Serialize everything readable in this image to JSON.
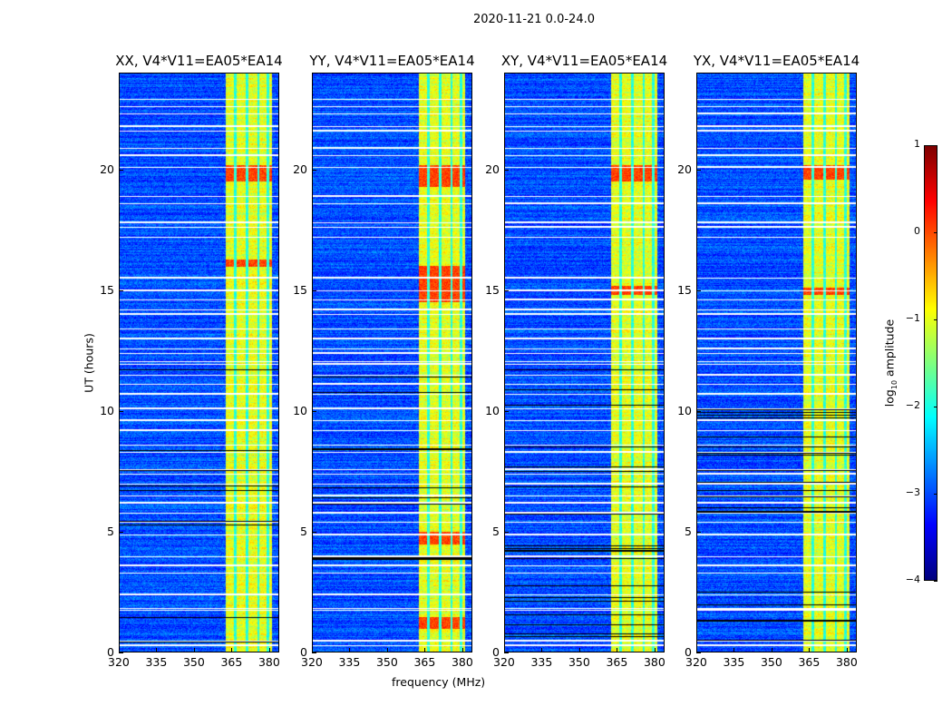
{
  "figure": {
    "suptitle": "2020-11-21 0.0-24.0"
  },
  "chart_data": {
    "type": "heatmap",
    "xlabel": "frequency (MHz)",
    "ylabel": "UT (hours)",
    "xlim": [
      320,
      384
    ],
    "ylim": [
      0,
      24
    ],
    "xticks": [
      320,
      335,
      350,
      365,
      380
    ],
    "yticks": [
      0,
      5,
      10,
      15,
      20
    ],
    "panels": [
      {
        "title": "XX, V4*V11=EA05*EA14",
        "hot_hours": [
          [
            19.5,
            20.2
          ],
          [
            16,
            16.3
          ]
        ]
      },
      {
        "title": "YY, V4*V11=EA05*EA14",
        "hot_hours": [
          [
            19.3,
            20.2
          ],
          [
            14.5,
            16
          ],
          [
            4.5,
            5
          ],
          [
            1,
            1.5
          ]
        ]
      },
      {
        "title": "XY, V4*V11=EA05*EA14",
        "hot_hours": [
          [
            19.5,
            20.2
          ],
          [
            14.8,
            15.2
          ]
        ]
      },
      {
        "title": "YX, V4*V11=EA05*EA14",
        "hot_hours": [
          [
            19.6,
            20.2
          ],
          [
            14.8,
            15.1
          ]
        ]
      }
    ],
    "rfi_band_mhz": [
      362.5,
      381
    ],
    "background_log_amplitude": -3,
    "rfi_log_amplitude": -1,
    "flagged_hours": [
      0.3,
      0.5,
      1.75,
      1.85,
      2.4,
      3.3,
      3.6,
      4.0,
      4.9,
      5.4,
      5.8,
      6.2,
      6.5,
      7.0,
      7.4,
      7.6,
      8.3,
      8.6,
      9.2,
      9.6,
      10.1,
      10.7,
      11.1,
      11.5,
      11.95,
      12.05,
      12.4,
      12.6,
      13.0,
      13.4,
      14.0,
      14.2,
      14.6,
      15.0,
      15.5,
      17.2,
      17.6,
      17.8,
      18.6,
      18.9,
      20.1,
      20.6,
      20.9,
      21.6,
      21.8,
      22.3,
      22.6,
      22.9
    ],
    "colorbar": {
      "label": "log10 amplitude",
      "label_main": "log",
      "label_sub": "10",
      "label_rest": " amplitude",
      "range": [
        -4,
        1
      ],
      "ticks": [
        -4,
        -3,
        -2,
        -1,
        0,
        1
      ],
      "colormap": "jet"
    }
  }
}
